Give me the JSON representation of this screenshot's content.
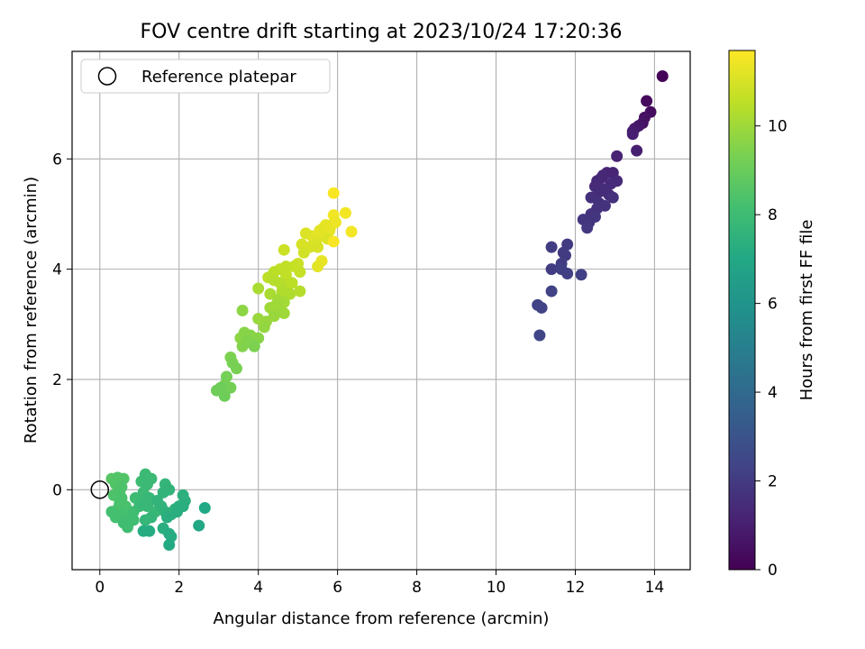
{
  "chart_data": {
    "type": "scatter",
    "title": "FOV centre drift starting at 2023/10/24 17:20:36",
    "xlabel": "Angular distance from reference (arcmin)",
    "ylabel": "Rotation from reference (arcmin)",
    "xlim": [
      -0.7,
      14.9
    ],
    "ylim": [
      -1.45,
      7.95
    ],
    "xticks": [
      0,
      2,
      4,
      6,
      8,
      10,
      12,
      14
    ],
    "yticks": [
      0,
      2,
      4,
      6
    ],
    "grid": true,
    "legend": {
      "position": "top-left",
      "entries": [
        "Reference platepar"
      ]
    },
    "reference_point": {
      "x": 0,
      "y": 0
    },
    "colorbar": {
      "label": "Hours from first FF file",
      "range": [
        0,
        11.7
      ],
      "ticks": [
        0,
        2,
        4,
        6,
        8,
        10
      ],
      "colormap": "viridis"
    },
    "point_color": "value of colorbar (hours)",
    "series": [
      {
        "values": [
          [
            14.2,
            7.5,
            0.1
          ],
          [
            13.8,
            7.05,
            0.3
          ],
          [
            13.9,
            6.85,
            0.4
          ],
          [
            13.75,
            6.75,
            0.5
          ],
          [
            13.7,
            6.65,
            0.6
          ],
          [
            13.6,
            6.6,
            0.7
          ],
          [
            13.5,
            6.55,
            0.8
          ],
          [
            13.45,
            6.5,
            0.9
          ],
          [
            13.45,
            6.45,
            1.0
          ],
          [
            13.55,
            6.15,
            1.0
          ],
          [
            13.05,
            6.05,
            1.1
          ],
          [
            12.95,
            5.75,
            1.2
          ],
          [
            12.8,
            5.75,
            1.2
          ],
          [
            12.7,
            5.7,
            1.3
          ],
          [
            12.65,
            5.65,
            1.3
          ],
          [
            12.55,
            5.6,
            1.3
          ],
          [
            13.05,
            5.6,
            1.4
          ],
          [
            12.5,
            5.5,
            1.4
          ],
          [
            12.9,
            5.55,
            1.4
          ],
          [
            12.75,
            5.45,
            1.5
          ],
          [
            12.6,
            5.4,
            1.5
          ],
          [
            12.85,
            5.35,
            1.5
          ],
          [
            12.95,
            5.3,
            1.6
          ],
          [
            12.4,
            5.3,
            1.6
          ],
          [
            12.6,
            5.2,
            1.6
          ],
          [
            12.75,
            5.15,
            1.7
          ],
          [
            12.55,
            5.1,
            1.7
          ],
          [
            12.4,
            5.0,
            1.7
          ],
          [
            12.5,
            4.95,
            1.8
          ],
          [
            12.2,
            4.9,
            1.8
          ],
          [
            12.35,
            4.85,
            1.8
          ],
          [
            12.3,
            4.75,
            1.9
          ],
          [
            11.8,
            4.45,
            2.0
          ],
          [
            11.7,
            4.3,
            2.0
          ],
          [
            11.75,
            4.25,
            2.0
          ],
          [
            11.4,
            4.4,
            2.1
          ],
          [
            11.65,
            4.1,
            2.1
          ],
          [
            11.4,
            4.0,
            2.1
          ],
          [
            11.65,
            4.0,
            2.2
          ],
          [
            11.8,
            3.92,
            2.2
          ],
          [
            12.15,
            3.9,
            2.2
          ],
          [
            11.4,
            3.6,
            2.3
          ],
          [
            11.05,
            3.35,
            2.3
          ],
          [
            11.15,
            3.3,
            2.3
          ],
          [
            11.1,
            2.8,
            2.4
          ],
          [
            5.9,
            5.38,
            11.6
          ],
          [
            6.2,
            5.02,
            11.5
          ],
          [
            5.9,
            4.98,
            11.5
          ],
          [
            5.95,
            4.85,
            11.4
          ],
          [
            5.85,
            4.8,
            11.4
          ],
          [
            5.7,
            4.8,
            11.3
          ],
          [
            5.65,
            4.75,
            11.3
          ],
          [
            5.8,
            4.7,
            11.3
          ],
          [
            6.35,
            4.68,
            11.5
          ],
          [
            5.55,
            4.7,
            11.2
          ],
          [
            5.6,
            4.6,
            11.2
          ],
          [
            5.35,
            4.6,
            11.2
          ],
          [
            5.75,
            4.55,
            11.1
          ],
          [
            5.9,
            4.5,
            11.6
          ],
          [
            5.2,
            4.65,
            11.1
          ],
          [
            5.45,
            4.5,
            11.1
          ],
          [
            5.5,
            4.4,
            11.0
          ],
          [
            5.3,
            4.4,
            11.0
          ],
          [
            5.1,
            4.45,
            11.0
          ],
          [
            5.15,
            4.3,
            10.9
          ],
          [
            5.6,
            4.15,
            11.3
          ],
          [
            5.5,
            4.05,
            11.2
          ],
          [
            4.65,
            4.35,
            10.8
          ],
          [
            5.0,
            4.1,
            10.8
          ],
          [
            4.9,
            4.05,
            10.7
          ],
          [
            5.05,
            3.95,
            10.7
          ],
          [
            4.7,
            4.05,
            10.6
          ],
          [
            4.55,
            4.0,
            10.6
          ],
          [
            4.7,
            3.9,
            10.6
          ],
          [
            4.4,
            3.95,
            10.5
          ],
          [
            4.25,
            3.85,
            10.5
          ],
          [
            4.4,
            3.8,
            10.4
          ],
          [
            4.55,
            3.75,
            10.4
          ],
          [
            4.7,
            3.7,
            10.4
          ],
          [
            4.85,
            3.75,
            10.5
          ],
          [
            4.6,
            3.6,
            10.3
          ],
          [
            4.8,
            3.55,
            10.3
          ],
          [
            5.05,
            3.6,
            10.4
          ],
          [
            4.0,
            3.65,
            10.2
          ],
          [
            4.3,
            3.55,
            10.2
          ],
          [
            4.5,
            3.45,
            10.1
          ],
          [
            4.65,
            3.4,
            10.1
          ],
          [
            4.45,
            3.35,
            10.0
          ],
          [
            4.3,
            3.3,
            10.0
          ],
          [
            4.55,
            3.25,
            10.0
          ],
          [
            4.65,
            3.2,
            10.0
          ],
          [
            4.4,
            3.15,
            9.9
          ],
          [
            4.0,
            3.1,
            9.9
          ],
          [
            4.2,
            3.05,
            9.9
          ],
          [
            4.15,
            2.95,
            9.8
          ],
          [
            3.6,
            3.25,
            9.7
          ],
          [
            3.55,
            2.75,
            9.7
          ],
          [
            3.65,
            2.85,
            9.6
          ],
          [
            3.8,
            2.8,
            9.6
          ],
          [
            3.9,
            2.75,
            9.6
          ],
          [
            4.0,
            2.75,
            9.6
          ],
          [
            3.7,
            2.7,
            9.5
          ],
          [
            3.85,
            2.65,
            9.5
          ],
          [
            3.6,
            2.6,
            9.5
          ],
          [
            3.9,
            2.6,
            9.4
          ],
          [
            3.3,
            2.4,
            9.4
          ],
          [
            3.35,
            2.3,
            9.3
          ],
          [
            3.45,
            2.2,
            9.3
          ],
          [
            3.2,
            2.05,
            9.2
          ],
          [
            3.15,
            1.9,
            9.2
          ],
          [
            3.05,
            1.85,
            9.1
          ],
          [
            2.95,
            1.8,
            9.1
          ],
          [
            3.3,
            1.85,
            9.2
          ],
          [
            3.15,
            1.7,
            9.1
          ],
          [
            0.3,
            0.2,
            8.6
          ],
          [
            0.45,
            0.22,
            8.5
          ],
          [
            0.6,
            0.2,
            8.5
          ],
          [
            0.4,
            0.1,
            8.5
          ],
          [
            0.55,
            0.05,
            8.4
          ],
          [
            0.5,
            -0.05,
            8.4
          ],
          [
            0.35,
            -0.1,
            8.4
          ],
          [
            0.55,
            -0.15,
            8.3
          ],
          [
            0.5,
            -0.25,
            8.3
          ],
          [
            0.65,
            -0.3,
            8.3
          ],
          [
            0.45,
            -0.35,
            8.3
          ],
          [
            0.3,
            -0.4,
            8.2
          ],
          [
            0.55,
            -0.45,
            8.2
          ],
          [
            0.4,
            -0.5,
            8.2
          ],
          [
            0.7,
            -0.5,
            8.2
          ],
          [
            0.85,
            -0.55,
            8.1
          ],
          [
            0.6,
            -0.6,
            8.1
          ],
          [
            0.7,
            -0.68,
            8.1
          ],
          [
            0.85,
            -0.4,
            8.1
          ],
          [
            1.0,
            -0.3,
            8.0
          ],
          [
            0.9,
            -0.15,
            8.0
          ],
          [
            1.05,
            0.15,
            8.0
          ],
          [
            1.15,
            0.28,
            7.9
          ],
          [
            1.3,
            0.2,
            7.9
          ],
          [
            1.2,
            0.1,
            7.9
          ],
          [
            1.1,
            -0.05,
            7.9
          ],
          [
            1.25,
            -0.15,
            7.8
          ],
          [
            1.05,
            -0.25,
            7.8
          ],
          [
            1.2,
            -0.3,
            7.8
          ],
          [
            1.4,
            -0.4,
            7.8
          ],
          [
            1.3,
            -0.5,
            7.7
          ],
          [
            1.15,
            -0.55,
            7.7
          ],
          [
            1.65,
            0.1,
            7.7
          ],
          [
            1.75,
            0.0,
            7.6
          ],
          [
            1.6,
            -0.05,
            7.6
          ],
          [
            1.45,
            -0.2,
            7.6
          ],
          [
            1.55,
            -0.3,
            7.6
          ],
          [
            1.65,
            -0.4,
            7.5
          ],
          [
            1.8,
            -0.45,
            7.5
          ],
          [
            1.9,
            -0.35,
            7.5
          ],
          [
            2.0,
            -0.3,
            7.4
          ],
          [
            2.1,
            -0.1,
            7.4
          ],
          [
            2.15,
            -0.2,
            7.4
          ],
          [
            2.1,
            -0.3,
            7.3
          ],
          [
            1.95,
            -0.4,
            7.3
          ],
          [
            1.7,
            -0.5,
            7.3
          ],
          [
            1.6,
            -0.7,
            7.3
          ],
          [
            1.75,
            -0.8,
            7.2
          ],
          [
            1.8,
            -0.85,
            7.2
          ],
          [
            1.25,
            -0.75,
            7.2
          ],
          [
            1.1,
            -0.75,
            7.2
          ],
          [
            1.75,
            -1.0,
            7.1
          ],
          [
            2.5,
            -0.65,
            7.0
          ],
          [
            2.65,
            -0.33,
            7.0
          ]
        ]
      }
    ]
  }
}
